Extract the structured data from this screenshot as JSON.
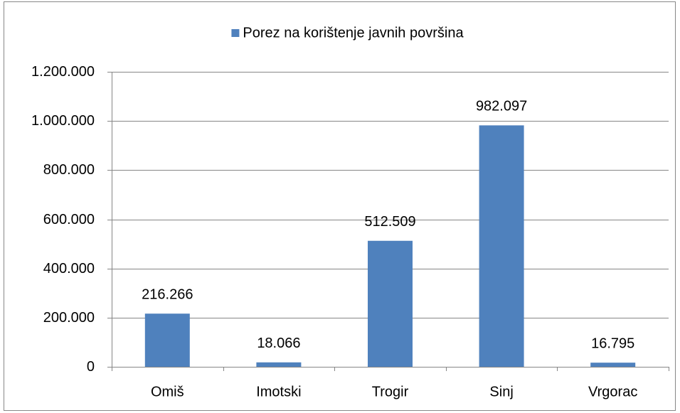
{
  "chart_data": {
    "type": "bar",
    "legend_position": "top",
    "categories": [
      "Omiš",
      "Imotski",
      "Trogir",
      "Sinj",
      "Vrgorac"
    ],
    "series": [
      {
        "name": "Porez na korištenje javnih površina",
        "color": "#4f81bd",
        "values": [
          216266,
          18066,
          512509,
          982097,
          16795
        ],
        "value_labels": [
          "216.266",
          "18.066",
          "512.509",
          "982.097",
          "16.795"
        ]
      }
    ],
    "ylim": [
      0,
      1200000
    ],
    "yticks": [
      0,
      {
        "value": 200000,
        "label": "200.000"
      },
      {
        "value": 400000,
        "label": "400.000"
      },
      {
        "value": 600000,
        "label": "600.000"
      },
      {
        "value": 800000,
        "label": "800.000"
      },
      {
        "value": 1000000,
        "label": "1.000.000"
      },
      {
        "value": 1200000,
        "label": "1.200.000"
      }
    ],
    "grid": true
  }
}
